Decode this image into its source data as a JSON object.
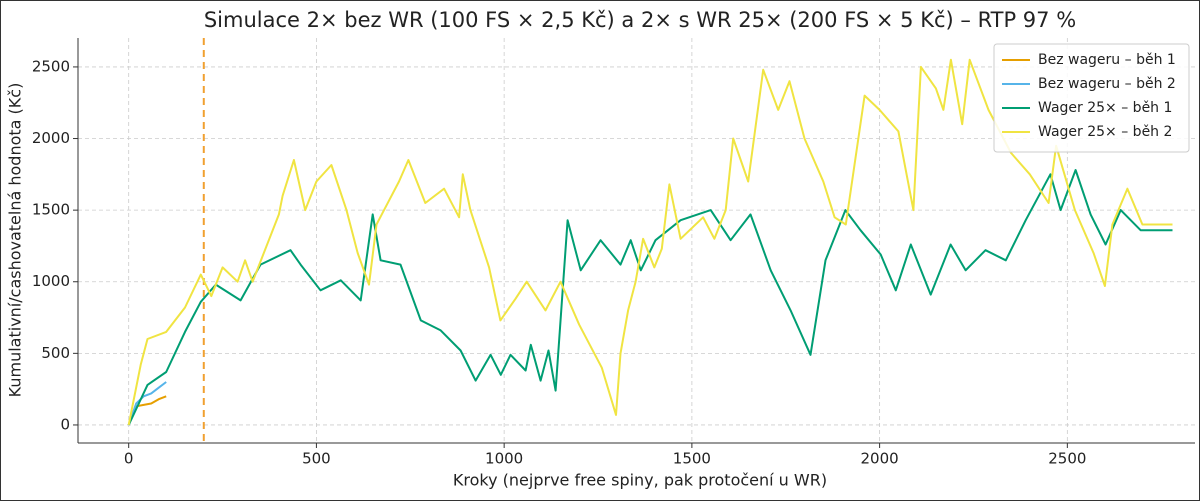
{
  "chart_data": {
    "type": "line",
    "title": "Simulace 2× bez WR (100 FS × 2,5 Kč) a 2× s WR 25× (200 FS × 5 Kč) – RTP 97 %",
    "x_label": "Kroky (nejprve free spiny, pak protočení u WR)",
    "y_label": "Kumulativní/cashovatelná hodnota (Kč)",
    "xlim": [
      -135,
      2840
    ],
    "ylim": [
      -126,
      2702
    ],
    "xticks": [
      0,
      500,
      1000,
      1500,
      2000,
      2500
    ],
    "yticks": [
      0,
      500,
      1000,
      1500,
      2000,
      2500
    ],
    "grid": true,
    "legend": "upper right",
    "vline": {
      "x": 200,
      "color": "#f0a030"
    },
    "series": [
      {
        "name": "Bez wageru – běh 1",
        "color": "#e69f00",
        "x": [
          0,
          10,
          20,
          40,
          60,
          80,
          100
        ],
        "values": [
          0,
          80,
          130,
          140,
          150,
          180,
          200
        ]
      },
      {
        "name": "Bez wageru – běh 2",
        "color": "#56b4e9",
        "x": [
          0,
          20,
          40,
          60,
          80,
          100
        ],
        "values": [
          0,
          150,
          200,
          220,
          260,
          300
        ]
      },
      {
        "name": "Wager 25× – běh 1",
        "color": "#009e73",
        "x": [
          0,
          50,
          100,
          150,
          192,
          232,
          298,
          351,
          431,
          458,
          511,
          565,
          618,
          650,
          671,
          724,
          778,
          831,
          884,
          924,
          964,
          991,
          1017,
          1057,
          1071,
          1097,
          1118,
          1137,
          1169,
          1204,
          1257,
          1310,
          1337,
          1364,
          1403,
          1470,
          1550,
          1603,
          1656,
          1710,
          1763,
          1816,
          1856,
          1909,
          1949,
          2003,
          2043,
          2083,
          2136,
          2189,
          2229,
          2282,
          2336,
          2389,
          2455,
          2482,
          2522,
          2562,
          2602,
          2642,
          2695,
          2780
        ],
        "values": [
          0,
          280,
          370,
          650,
          860,
          980,
          870,
          1120,
          1220,
          1120,
          940,
          1010,
          870,
          1470,
          1150,
          1120,
          730,
          660,
          520,
          310,
          490,
          350,
          490,
          380,
          560,
          310,
          520,
          240,
          1430,
          1080,
          1290,
          1120,
          1290,
          1080,
          1290,
          1430,
          1500,
          1290,
          1470,
          1080,
          800,
          490,
          1150,
          1500,
          1360,
          1190,
          940,
          1260,
          910,
          1260,
          1080,
          1220,
          1150,
          1430,
          1750,
          1500,
          1780,
          1470,
          1260,
          1500,
          1360,
          1360
        ]
      },
      {
        "name": "Wager 25× – běh 2",
        "color": "#f0e442",
        "x": [
          0,
          32,
          50,
          100,
          150,
          192,
          220,
          250,
          290,
          310,
          330,
          400,
          410,
          440,
          470,
          500,
          540,
          580,
          610,
          640,
          660,
          720,
          745,
          790,
          840,
          880,
          890,
          910,
          960,
          990,
          1030,
          1060,
          1110,
          1150,
          1200,
          1260,
          1298,
          1310,
          1330,
          1350,
          1370,
          1400,
          1420,
          1440,
          1470,
          1530,
          1560,
          1590,
          1610,
          1650,
          1690,
          1730,
          1760,
          1800,
          1850,
          1880,
          1910,
          1960,
          2000,
          2050,
          2090,
          2110,
          2150,
          2170,
          2190,
          2220,
          2240,
          2290,
          2350,
          2400,
          2450,
          2470,
          2520,
          2570,
          2600,
          2620,
          2660,
          2700,
          2780
        ],
        "values": [
          0,
          420,
          600,
          650,
          820,
          1050,
          900,
          1100,
          1000,
          1150,
          1000,
          1470,
          1600,
          1850,
          1500,
          1700,
          1815,
          1500,
          1200,
          980,
          1400,
          1700,
          1850,
          1550,
          1650,
          1450,
          1750,
          1500,
          1100,
          730,
          880,
          1000,
          800,
          1000,
          700,
          400,
          70,
          500,
          800,
          1000,
          1300,
          1100,
          1230,
          1680,
          1300,
          1450,
          1300,
          1500,
          2000,
          1700,
          2480,
          2200,
          2400,
          2000,
          1700,
          1450,
          1400,
          2300,
          2200,
          2050,
          1500,
          2500,
          2350,
          2200,
          2550,
          2100,
          2550,
          2200,
          1900,
          1750,
          1550,
          1950,
          1500,
          1200,
          970,
          1400,
          1650,
          1400,
          1400
        ]
      }
    ]
  }
}
